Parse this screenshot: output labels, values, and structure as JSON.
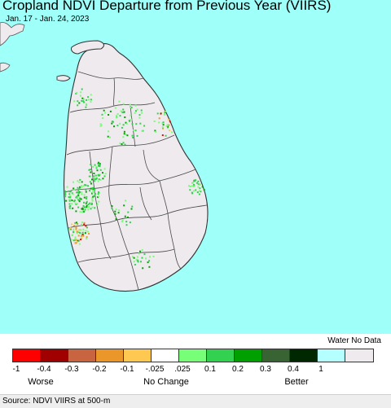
{
  "map": {
    "title": "Cropland NDVI Departure from Previous Year (VIIRS)",
    "dates": "Jan. 17 - Jan. 24, 2023",
    "colors": {
      "water": "#9ffff9",
      "land": "#eeeaee",
      "boundary": "#4a4a4a"
    }
  },
  "legend": {
    "no_data_label": "Water No Data",
    "bins": [
      {
        "color": "#ff0000"
      },
      {
        "color": "#a00000"
      },
      {
        "color": "#c86440"
      },
      {
        "color": "#eb9628"
      },
      {
        "color": "#ffc850"
      },
      {
        "color": "#ffffff"
      },
      {
        "color": "#78ff78"
      },
      {
        "color": "#32d250"
      },
      {
        "color": "#00a000"
      },
      {
        "color": "#376432"
      },
      {
        "color": "#002800"
      },
      {
        "color": "#b4ffff"
      },
      {
        "color": "#eeeaee"
      }
    ],
    "ticks": [
      "-1",
      "-0.4",
      "-0.3",
      "-0.2",
      "-0.1",
      "-.025",
      ".025",
      "0.1",
      "0.2",
      "0.3",
      "0.4",
      "1"
    ],
    "categories": {
      "worse": "Worse",
      "no_change": "No Change",
      "better": "Better"
    }
  },
  "footer": {
    "source": "Source: NDVI VIIRS at 500-m"
  }
}
